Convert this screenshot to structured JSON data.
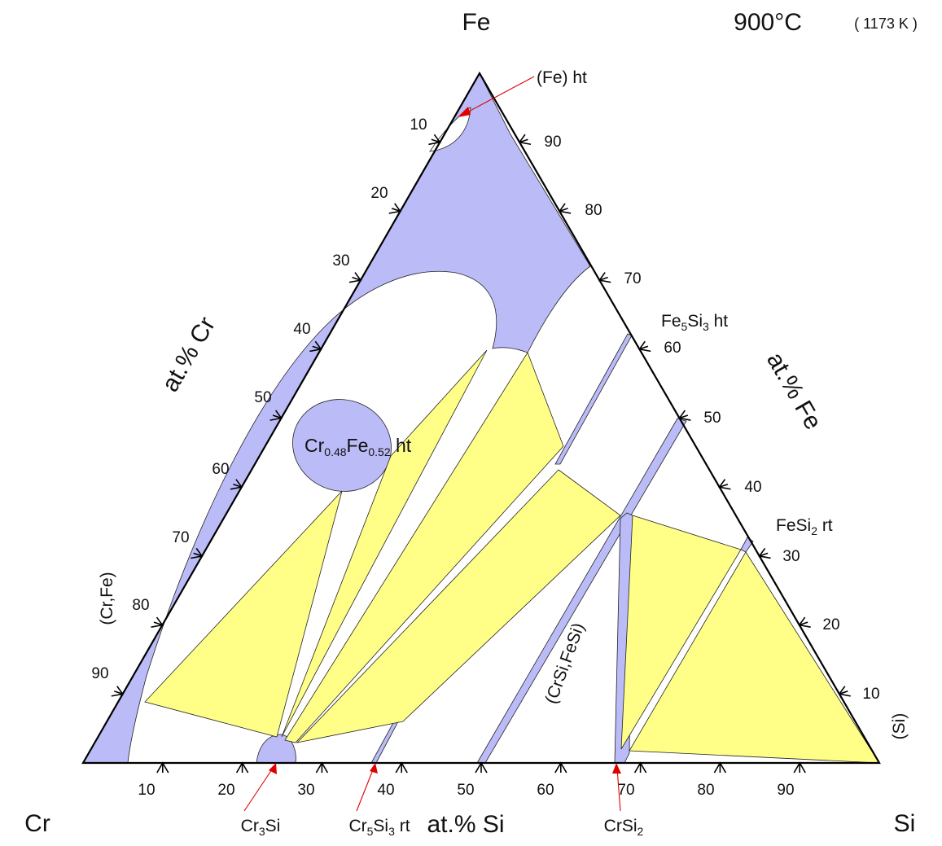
{
  "corners": {
    "top": "Fe",
    "left": "Cr",
    "right": "Si"
  },
  "temperature": {
    "celsius": "900°C",
    "kelvin": "( 1173 K )"
  },
  "axes": {
    "bottom": {
      "title": "at.% Si",
      "ticks": [
        "10",
        "20",
        "30",
        "40",
        "50",
        "60",
        "70",
        "80",
        "90"
      ]
    },
    "left": {
      "title": "at.% Cr",
      "ticks": [
        "10",
        "20",
        "30",
        "40",
        "50",
        "60",
        "70",
        "80",
        "90"
      ]
    },
    "right": {
      "title": "at.% Fe",
      "ticks": [
        "10",
        "20",
        "30",
        "40",
        "50",
        "60",
        "70",
        "80",
        "90"
      ]
    }
  },
  "phases": {
    "fe_ht": {
      "label": "(Fe) ht"
    },
    "fe5si3": {
      "main1": "Fe",
      "sub1": "5",
      "main2": "Si",
      "sub2": "3",
      "suffix": " ht"
    },
    "crfe_ht": {
      "main1": "Cr",
      "sub1": "0.48",
      "main2": "Fe",
      "sub2": "0.52",
      "suffix": " ht"
    },
    "fesi2": {
      "main1": "FeSi",
      "sub1": "2",
      "suffix": " rt"
    },
    "crfe": {
      "label": "(Cr,Fe)"
    },
    "crsi_fesi": {
      "label": "(CrSi,FeSi)"
    },
    "si": {
      "label": "(Si)"
    },
    "cr3si": {
      "main1": "Cr",
      "sub1": "3",
      "main2": "Si"
    },
    "cr5si3": {
      "main1": "Cr",
      "sub1": "5",
      "main2": "Si",
      "sub2": "3",
      "suffix": " rt"
    },
    "crsi2": {
      "main1": "CrSi",
      "sub1": "2"
    }
  },
  "colors": {
    "single_phase": "#bbbbf8",
    "three_phase": "#ffff88",
    "arrow": "#e00000"
  }
}
